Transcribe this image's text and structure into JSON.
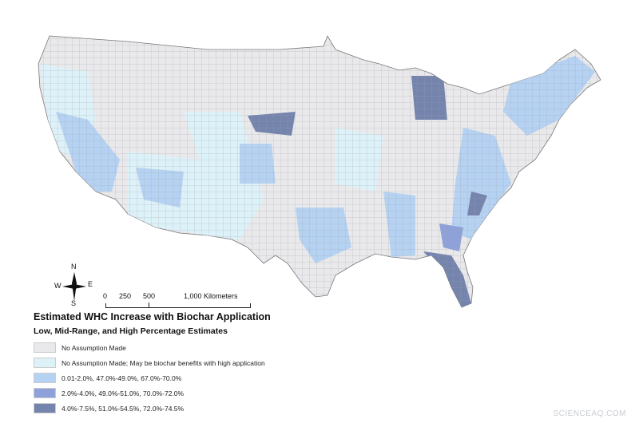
{
  "legend": {
    "title": "Estimated WHC Increase with Biochar Application",
    "subtitle": "Low, Mid-Range, and High Percentage Estimates",
    "items": [
      {
        "label": "No Assumption Made",
        "color": "#e9e9eb"
      },
      {
        "label": "No Assumption Made; May be biochar benefits with high application",
        "color": "#ddf1f9"
      },
      {
        "label": "0.01-2.0%, 47.0%-49.0%, 67.0%-70.0%",
        "color": "#b6d2f2"
      },
      {
        "label": "2.0%-4.0%, 49.0%-51.0%, 70.0%-72.0%",
        "color": "#8ea2d9"
      },
      {
        "label": "4.0%-7.5%, 51.0%-54.5%, 72.0%-74.5%",
        "color": "#7584ad"
      }
    ]
  },
  "compass": {
    "n": "N",
    "s": "S",
    "e": "E",
    "w": "W"
  },
  "scale": {
    "t0": "0",
    "t1": "250",
    "t2": "500",
    "t3": "1,000 Kilometers"
  },
  "watermark": "SCIENCEAQ.COM"
}
